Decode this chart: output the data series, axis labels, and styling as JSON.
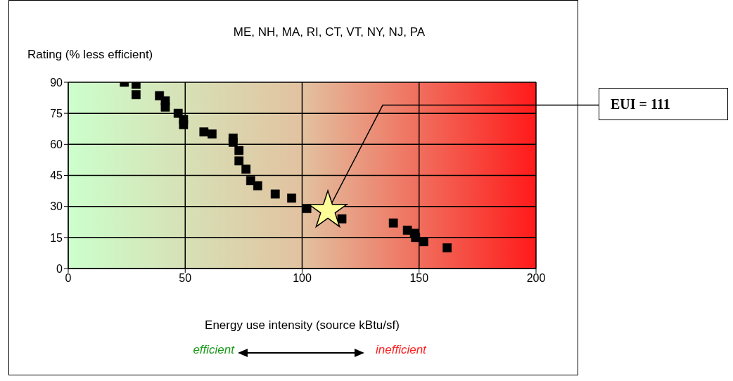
{
  "chart_data": {
    "type": "scatter",
    "title": "ME, NH, MA, RI, CT, VT, NY, NJ, PA",
    "xlabel": "Energy use intensity (source kBtu/sf)",
    "ylabel": "Rating (% less efficient)",
    "xlim": [
      0,
      200
    ],
    "xticks": [
      0,
      50,
      100,
      150,
      200
    ],
    "ylim": [
      0,
      90
    ],
    "yticks": [
      0,
      15,
      30,
      45,
      60,
      75,
      90
    ],
    "grid": true,
    "series": [
      {
        "color": "#000000",
        "marker": "square",
        "x": [
          24,
          29,
          29,
          39,
          41.5,
          41.5,
          47,
          49.3,
          49.3,
          58,
          61.5,
          70.5,
          70.5,
          73,
          73,
          76,
          78,
          81,
          88.5,
          95.5,
          102,
          117,
          139,
          145,
          148,
          148.5,
          152,
          162
        ],
        "values": [
          90,
          89,
          84,
          83.5,
          81,
          78,
          75,
          72,
          69.5,
          66,
          65,
          63,
          61,
          57,
          52,
          48,
          42.5,
          40,
          36,
          34,
          29,
          24,
          22,
          18.5,
          17,
          15,
          13,
          10
        ]
      },
      {
        "color": "#ffff99",
        "marker": "star",
        "x": [
          111
        ],
        "values": [
          28
        ]
      }
    ],
    "annotations": [
      {
        "text": "EUI = 111",
        "x": 111,
        "y": 28
      },
      "efficient",
      "inefficient"
    ]
  }
}
